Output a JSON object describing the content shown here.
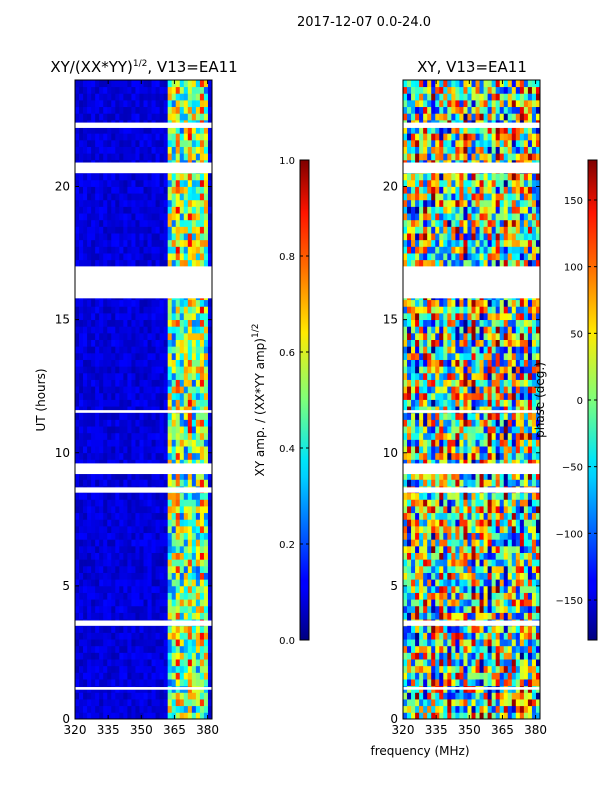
{
  "figure": {
    "suptitle": "2017-12-07 0.0-24.0",
    "xlabel_shared": "frequency (MHz)"
  },
  "chart_data": [
    {
      "type": "heatmap",
      "title_main": "XY/(XX*YY)",
      "title_sup": "1/2",
      "title_tail": ", V13=EA11",
      "xlabel": "",
      "ylabel": "UT (hours)",
      "xlim": [
        320,
        382
      ],
      "ylim": [
        0,
        24
      ],
      "xticks": [
        "320",
        "335",
        "350",
        "365",
        "380"
      ],
      "yticks": [
        "0",
        "5",
        "10",
        "15",
        "20"
      ],
      "colorbar": {
        "label_main": "XY amp. / (XX*YY amp)",
        "label_sup": "1/2",
        "range": [
          0.0,
          1.0
        ],
        "ticks": [
          "0.0",
          "0.2",
          "0.4",
          "0.6",
          "0.8",
          "1.0"
        ]
      },
      "active_band_mhz": [
        362,
        381
      ],
      "gap_hours": [
        [
          17.0,
          15.8
        ],
        [
          22.4,
          22.2
        ],
        [
          20.9,
          20.5
        ],
        [
          11.6,
          11.5
        ],
        [
          9.6,
          9.2
        ],
        [
          8.7,
          8.5
        ],
        [
          3.7,
          3.5
        ],
        [
          1.2,
          1.1
        ]
      ]
    },
    {
      "type": "heatmap",
      "title_main": "XY, V13=EA11",
      "xlabel": "frequency (MHz)",
      "ylabel": "",
      "xlim": [
        320,
        382
      ],
      "ylim": [
        0,
        24
      ],
      "xticks": [
        "320",
        "335",
        "350",
        "365",
        "380"
      ],
      "yticks": [
        "0",
        "5",
        "10",
        "15",
        "20"
      ],
      "colorbar": {
        "label_main": "phase (deg.)",
        "range": [
          -180,
          180
        ],
        "ticks": [
          "-150",
          "-100",
          "-50",
          "0",
          "50",
          "100",
          "150"
        ]
      },
      "gap_hours": [
        [
          17.0,
          15.8
        ],
        [
          22.4,
          22.2
        ],
        [
          20.9,
          20.5
        ],
        [
          11.6,
          11.5
        ],
        [
          9.6,
          9.2
        ],
        [
          8.7,
          8.5
        ],
        [
          3.7,
          3.5
        ],
        [
          1.2,
          1.1
        ]
      ]
    }
  ]
}
